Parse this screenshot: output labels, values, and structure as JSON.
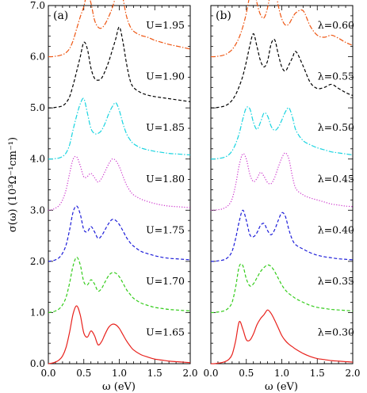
{
  "chart_data": [
    {
      "type": "line",
      "panel_label": "(a)",
      "xlabel": "ω (eV)",
      "ylabel": "σ(ω) (10³Ω⁻¹cm⁻¹)",
      "xlim": [
        0.0,
        2.0
      ],
      "ylim": [
        0.0,
        7.0
      ],
      "x_ticks": [
        "0.0",
        "0.5",
        "1.0",
        "1.5",
        "2.0"
      ],
      "y_ticks": [
        "0.0",
        "1.0",
        "2.0",
        "3.0",
        "4.0",
        "5.0",
        "6.0",
        "7.0"
      ],
      "series": [
        {
          "name": "U=1.65",
          "offset": 0.0,
          "color": "#e8211c",
          "style": "solid",
          "x": [
            0.0,
            0.05,
            0.1,
            0.15,
            0.2,
            0.25,
            0.3,
            0.35,
            0.4,
            0.45,
            0.5,
            0.55,
            0.6,
            0.65,
            0.7,
            0.75,
            0.8,
            0.85,
            0.9,
            0.95,
            1.0,
            1.05,
            1.1,
            1.15,
            1.2,
            1.3,
            1.4,
            1.5,
            1.6,
            1.7,
            1.8,
            1.9,
            2.0
          ],
          "y": [
            0.0,
            0.01,
            0.03,
            0.07,
            0.15,
            0.32,
            0.62,
            0.98,
            1.13,
            0.95,
            0.6,
            0.52,
            0.64,
            0.55,
            0.37,
            0.43,
            0.58,
            0.71,
            0.77,
            0.76,
            0.69,
            0.57,
            0.45,
            0.35,
            0.27,
            0.18,
            0.13,
            0.09,
            0.07,
            0.05,
            0.04,
            0.03,
            0.02
          ]
        },
        {
          "name": "U=1.70",
          "offset": 1.0,
          "color": "#33cc1a",
          "style": "dashed",
          "x": [
            0.0,
            0.05,
            0.1,
            0.15,
            0.2,
            0.25,
            0.3,
            0.35,
            0.4,
            0.45,
            0.5,
            0.55,
            0.6,
            0.65,
            0.7,
            0.75,
            0.8,
            0.85,
            0.9,
            0.95,
            1.0,
            1.05,
            1.1,
            1.15,
            1.2,
            1.3,
            1.4,
            1.5,
            1.6,
            1.7,
            1.8,
            1.9,
            2.0
          ],
          "y": [
            0.0,
            0.01,
            0.03,
            0.07,
            0.15,
            0.3,
            0.58,
            0.92,
            1.08,
            0.93,
            0.6,
            0.54,
            0.64,
            0.56,
            0.42,
            0.47,
            0.6,
            0.72,
            0.78,
            0.77,
            0.7,
            0.58,
            0.45,
            0.36,
            0.28,
            0.19,
            0.14,
            0.1,
            0.08,
            0.06,
            0.05,
            0.04,
            0.03
          ]
        },
        {
          "name": "U=1.75",
          "offset": 2.0,
          "color": "#1c1cd9",
          "style": "dashed",
          "x": [
            0.0,
            0.05,
            0.1,
            0.15,
            0.2,
            0.25,
            0.3,
            0.35,
            0.4,
            0.45,
            0.5,
            0.55,
            0.6,
            0.65,
            0.7,
            0.75,
            0.8,
            0.85,
            0.9,
            0.95,
            1.0,
            1.05,
            1.1,
            1.15,
            1.2,
            1.3,
            1.4,
            1.5,
            1.6,
            1.7,
            1.8,
            1.9,
            2.0
          ],
          "y": [
            0.0,
            0.01,
            0.03,
            0.07,
            0.16,
            0.32,
            0.62,
            0.97,
            1.08,
            0.92,
            0.62,
            0.58,
            0.68,
            0.58,
            0.45,
            0.5,
            0.62,
            0.74,
            0.82,
            0.8,
            0.72,
            0.6,
            0.47,
            0.37,
            0.3,
            0.2,
            0.15,
            0.11,
            0.08,
            0.06,
            0.05,
            0.04,
            0.03
          ]
        },
        {
          "name": "U=1.80",
          "offset": 3.0,
          "color": "#cc33cc",
          "style": "dotted",
          "x": [
            0.0,
            0.05,
            0.1,
            0.15,
            0.2,
            0.25,
            0.3,
            0.35,
            0.4,
            0.45,
            0.5,
            0.55,
            0.6,
            0.65,
            0.7,
            0.75,
            0.8,
            0.85,
            0.9,
            0.95,
            1.0,
            1.05,
            1.1,
            1.15,
            1.2,
            1.3,
            1.4,
            1.5,
            1.6,
            1.7,
            1.8,
            1.9,
            2.0
          ],
          "y": [
            0.0,
            0.01,
            0.04,
            0.09,
            0.2,
            0.4,
            0.72,
            1.0,
            1.04,
            0.87,
            0.65,
            0.66,
            0.72,
            0.64,
            0.55,
            0.62,
            0.76,
            0.9,
            1.0,
            0.97,
            0.85,
            0.67,
            0.5,
            0.38,
            0.3,
            0.22,
            0.17,
            0.13,
            0.1,
            0.08,
            0.07,
            0.06,
            0.05
          ]
        },
        {
          "name": "U=1.85",
          "offset": 4.0,
          "color": "#19d4e0",
          "style": "dashdot",
          "x": [
            0.0,
            0.05,
            0.1,
            0.15,
            0.2,
            0.25,
            0.3,
            0.35,
            0.4,
            0.45,
            0.5,
            0.55,
            0.6,
            0.65,
            0.7,
            0.75,
            0.8,
            0.85,
            0.9,
            0.95,
            1.0,
            1.05,
            1.1,
            1.15,
            1.2,
            1.3,
            1.4,
            1.5,
            1.6,
            1.7,
            1.8,
            1.9,
            2.0
          ],
          "y": [
            0.0,
            0.0,
            0.01,
            0.02,
            0.05,
            0.12,
            0.28,
            0.58,
            0.85,
            1.08,
            1.18,
            0.9,
            0.6,
            0.5,
            0.5,
            0.56,
            0.7,
            0.88,
            1.02,
            1.1,
            0.95,
            0.7,
            0.5,
            0.38,
            0.3,
            0.22,
            0.18,
            0.15,
            0.13,
            0.11,
            0.1,
            0.09,
            0.08
          ]
        },
        {
          "name": "U=1.90",
          "offset": 5.0,
          "color": "#000000",
          "style": "dashed",
          "x": [
            0.0,
            0.05,
            0.1,
            0.15,
            0.2,
            0.25,
            0.3,
            0.35,
            0.4,
            0.45,
            0.5,
            0.55,
            0.6,
            0.65,
            0.7,
            0.75,
            0.8,
            0.85,
            0.9,
            0.95,
            1.0,
            1.05,
            1.1,
            1.15,
            1.2,
            1.3,
            1.4,
            1.5,
            1.6,
            1.7,
            1.8,
            1.9,
            2.0
          ],
          "y": [
            0.0,
            0.0,
            0.01,
            0.02,
            0.04,
            0.1,
            0.22,
            0.45,
            0.72,
            1.0,
            1.28,
            1.15,
            0.78,
            0.58,
            0.54,
            0.58,
            0.72,
            0.9,
            1.12,
            1.35,
            1.58,
            1.3,
            0.88,
            0.55,
            0.4,
            0.3,
            0.25,
            0.22,
            0.2,
            0.18,
            0.16,
            0.14,
            0.12
          ]
        },
        {
          "name": "U=1.95",
          "offset": 6.0,
          "color": "#ee5511",
          "style": "dashdot",
          "x": [
            0.0,
            0.05,
            0.1,
            0.15,
            0.2,
            0.25,
            0.3,
            0.35,
            0.4,
            0.45,
            0.5,
            0.55,
            0.6,
            0.65,
            0.7,
            0.75,
            0.8,
            0.85,
            0.9,
            0.95,
            1.0,
            1.05,
            1.1,
            1.15,
            1.2,
            1.3,
            1.4,
            1.5,
            1.6,
            1.7,
            1.8,
            1.9,
            2.0
          ],
          "y": [
            0.0,
            0.0,
            0.01,
            0.02,
            0.04,
            0.08,
            0.16,
            0.32,
            0.55,
            0.78,
            0.98,
            1.25,
            1.05,
            0.72,
            0.58,
            0.56,
            0.64,
            0.78,
            0.95,
            1.18,
            1.4,
            1.15,
            0.8,
            0.6,
            0.5,
            0.42,
            0.38,
            0.32,
            0.28,
            0.24,
            0.21,
            0.18,
            0.15
          ]
        }
      ]
    },
    {
      "type": "line",
      "panel_label": "(b)",
      "xlabel": "ω (eV)",
      "ylabel": "",
      "xlim": [
        0.0,
        2.0
      ],
      "ylim": [
        0.0,
        7.0
      ],
      "x_ticks": [
        "0.0",
        "0.5",
        "1.0",
        "1.5",
        "2.0"
      ],
      "series": [
        {
          "name": "λ=0.30",
          "offset": 0.0,
          "color": "#e8211c",
          "style": "solid",
          "x": [
            0.0,
            0.05,
            0.1,
            0.15,
            0.2,
            0.25,
            0.3,
            0.35,
            0.4,
            0.45,
            0.5,
            0.55,
            0.6,
            0.65,
            0.7,
            0.75,
            0.8,
            0.85,
            0.9,
            0.95,
            1.0,
            1.05,
            1.1,
            1.15,
            1.2,
            1.3,
            1.4,
            1.5,
            1.6,
            1.7,
            1.8,
            1.9,
            2.0
          ],
          "y": [
            0.0,
            0.0,
            0.01,
            0.02,
            0.04,
            0.08,
            0.18,
            0.45,
            0.82,
            0.68,
            0.47,
            0.46,
            0.58,
            0.76,
            0.88,
            0.96,
            1.05,
            0.98,
            0.85,
            0.7,
            0.55,
            0.45,
            0.38,
            0.33,
            0.28,
            0.2,
            0.14,
            0.1,
            0.08,
            0.06,
            0.05,
            0.04,
            0.03
          ]
        },
        {
          "name": "λ=0.35",
          "offset": 1.0,
          "color": "#33cc1a",
          "style": "dashed",
          "x": [
            0.0,
            0.05,
            0.1,
            0.15,
            0.2,
            0.25,
            0.3,
            0.35,
            0.4,
            0.45,
            0.5,
            0.55,
            0.6,
            0.65,
            0.7,
            0.75,
            0.8,
            0.85,
            0.9,
            0.95,
            1.0,
            1.05,
            1.1,
            1.15,
            1.2,
            1.3,
            1.4,
            1.5,
            1.6,
            1.7,
            1.8,
            1.9,
            2.0
          ],
          "y": [
            0.0,
            0.0,
            0.01,
            0.02,
            0.04,
            0.09,
            0.2,
            0.5,
            0.9,
            0.92,
            0.66,
            0.52,
            0.56,
            0.68,
            0.8,
            0.88,
            0.93,
            0.9,
            0.8,
            0.67,
            0.54,
            0.44,
            0.37,
            0.32,
            0.27,
            0.2,
            0.14,
            0.1,
            0.08,
            0.06,
            0.05,
            0.04,
            0.03
          ]
        },
        {
          "name": "λ=0.40",
          "offset": 2.0,
          "color": "#1c1cd9",
          "style": "dashed",
          "x": [
            0.0,
            0.05,
            0.1,
            0.15,
            0.2,
            0.25,
            0.3,
            0.35,
            0.4,
            0.45,
            0.5,
            0.55,
            0.6,
            0.65,
            0.7,
            0.75,
            0.8,
            0.85,
            0.9,
            0.95,
            1.0,
            1.05,
            1.1,
            1.15,
            1.2,
            1.3,
            1.4,
            1.5,
            1.6,
            1.7,
            1.8,
            1.9,
            2.0
          ],
          "y": [
            0.0,
            0.0,
            0.01,
            0.02,
            0.04,
            0.09,
            0.2,
            0.45,
            0.78,
            1.0,
            0.8,
            0.52,
            0.48,
            0.56,
            0.7,
            0.74,
            0.6,
            0.52,
            0.62,
            0.8,
            0.95,
            0.88,
            0.62,
            0.42,
            0.32,
            0.24,
            0.17,
            0.12,
            0.09,
            0.07,
            0.05,
            0.04,
            0.03
          ]
        },
        {
          "name": "λ=0.45",
          "offset": 3.0,
          "color": "#cc33cc",
          "style": "dotted",
          "x": [
            0.0,
            0.05,
            0.1,
            0.15,
            0.2,
            0.25,
            0.3,
            0.35,
            0.4,
            0.45,
            0.5,
            0.55,
            0.6,
            0.65,
            0.7,
            0.75,
            0.8,
            0.85,
            0.9,
            0.95,
            1.0,
            1.05,
            1.1,
            1.15,
            1.2,
            1.3,
            1.4,
            1.5,
            1.6,
            1.7,
            1.8,
            1.9,
            2.0
          ],
          "y": [
            0.0,
            0.0,
            0.01,
            0.02,
            0.05,
            0.1,
            0.22,
            0.5,
            0.88,
            1.1,
            1.0,
            0.7,
            0.56,
            0.62,
            0.74,
            0.66,
            0.54,
            0.52,
            0.64,
            0.84,
            1.02,
            1.12,
            1.0,
            0.66,
            0.42,
            0.3,
            0.24,
            0.2,
            0.16,
            0.12,
            0.1,
            0.08,
            0.07
          ]
        },
        {
          "name": "λ=0.50",
          "offset": 4.0,
          "color": "#19d4e0",
          "style": "dashdot",
          "x": [
            0.0,
            0.05,
            0.1,
            0.15,
            0.2,
            0.25,
            0.3,
            0.35,
            0.4,
            0.45,
            0.5,
            0.55,
            0.6,
            0.65,
            0.7,
            0.75,
            0.8,
            0.85,
            0.9,
            0.95,
            1.0,
            1.05,
            1.1,
            1.15,
            1.2,
            1.3,
            1.4,
            1.5,
            1.6,
            1.7,
            1.8,
            1.9,
            2.0
          ],
          "y": [
            0.0,
            0.0,
            0.01,
            0.02,
            0.04,
            0.08,
            0.16,
            0.3,
            0.5,
            0.78,
            1.0,
            0.98,
            0.72,
            0.58,
            0.72,
            0.9,
            0.84,
            0.64,
            0.56,
            0.62,
            0.76,
            0.92,
            1.0,
            0.82,
            0.56,
            0.36,
            0.28,
            0.22,
            0.18,
            0.14,
            0.12,
            0.1,
            0.08
          ]
        },
        {
          "name": "λ=0.55",
          "offset": 5.0,
          "color": "#000000",
          "style": "dashed",
          "x": [
            0.0,
            0.05,
            0.1,
            0.15,
            0.2,
            0.25,
            0.3,
            0.35,
            0.4,
            0.45,
            0.5,
            0.55,
            0.6,
            0.65,
            0.7,
            0.75,
            0.8,
            0.85,
            0.9,
            0.95,
            1.0,
            1.05,
            1.1,
            1.15,
            1.2,
            1.3,
            1.4,
            1.5,
            1.6,
            1.7,
            1.8,
            1.9,
            2.0
          ],
          "y": [
            0.0,
            0.0,
            0.01,
            0.02,
            0.04,
            0.08,
            0.15,
            0.26,
            0.42,
            0.62,
            0.9,
            1.22,
            1.45,
            1.2,
            0.92,
            0.8,
            0.92,
            1.25,
            1.33,
            1.05,
            0.8,
            0.72,
            0.84,
            0.98,
            1.1,
            0.82,
            0.5,
            0.38,
            0.4,
            0.46,
            0.38,
            0.3,
            0.24
          ]
        },
        {
          "name": "λ=0.60",
          "offset": 6.0,
          "color": "#ee5511",
          "style": "dashdot",
          "x": [
            0.0,
            0.05,
            0.1,
            0.15,
            0.2,
            0.25,
            0.3,
            0.35,
            0.4,
            0.45,
            0.5,
            0.55,
            0.6,
            0.65,
            0.7,
            0.75,
            0.8,
            0.85,
            0.9,
            0.95,
            1.0,
            1.05,
            1.1,
            1.15,
            1.2,
            1.3,
            1.4,
            1.5,
            1.6,
            1.7,
            1.8,
            1.9,
            2.0
          ],
          "y": [
            0.0,
            0.0,
            0.01,
            0.02,
            0.04,
            0.08,
            0.14,
            0.24,
            0.38,
            0.58,
            0.85,
            1.2,
            1.4,
            1.05,
            0.82,
            0.76,
            0.96,
            1.3,
            1.38,
            1.0,
            0.74,
            0.62,
            0.64,
            0.76,
            0.86,
            0.9,
            0.6,
            0.42,
            0.38,
            0.42,
            0.36,
            0.28,
            0.22
          ]
        }
      ]
    }
  ]
}
